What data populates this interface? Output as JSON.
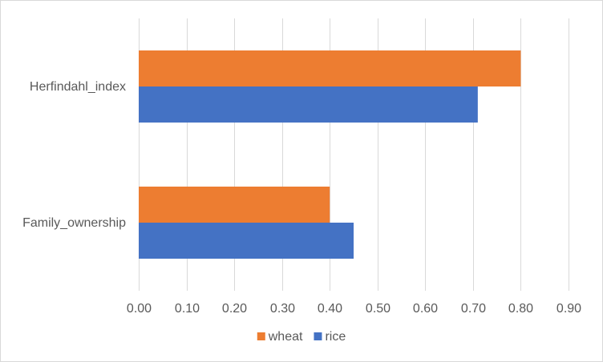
{
  "chart_data": {
    "type": "bar",
    "orientation": "horizontal",
    "title": "",
    "xlabel": "",
    "ylabel": "",
    "categories": [
      "Herfindahl_index",
      "Family_ownership"
    ],
    "series": [
      {
        "name": "wheat",
        "color": "#ED7D31",
        "values": [
          0.8,
          0.4
        ]
      },
      {
        "name": "rice",
        "color": "#4472C4",
        "values": [
          0.71,
          0.45
        ]
      }
    ],
    "xlim": [
      0,
      0.9
    ],
    "xticks": [
      "0.00",
      "0.10",
      "0.20",
      "0.30",
      "0.40",
      "0.50",
      "0.60",
      "0.70",
      "0.80",
      "0.90"
    ],
    "grid": true,
    "legend_position": "bottom"
  }
}
